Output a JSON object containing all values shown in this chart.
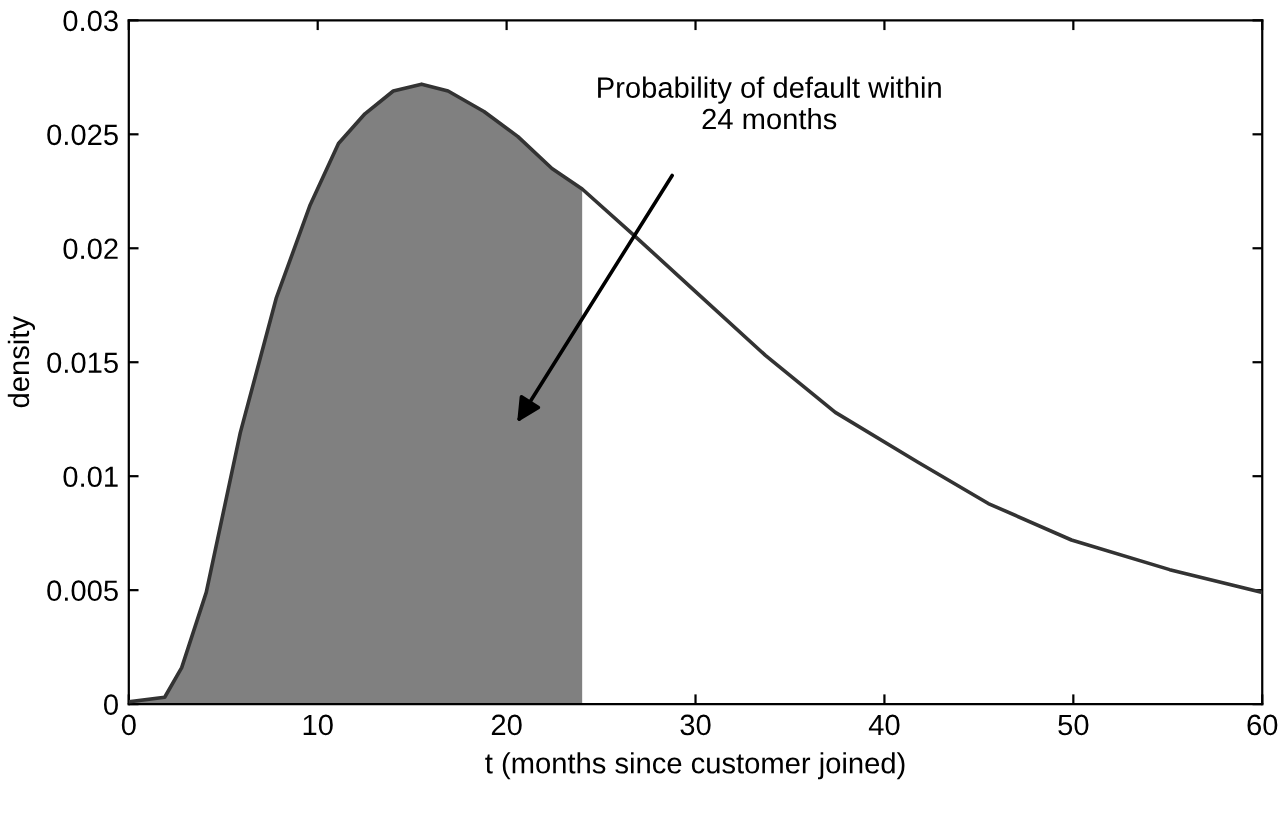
{
  "chart_data": {
    "type": "line",
    "xlabel": "t (months since customer joined)",
    "ylabel": "density",
    "series": [
      {
        "type": "area",
        "color": "#808080",
        "x": [
          0,
          1.9,
          2.8,
          4.1,
          5.9,
          7.8,
          9.6,
          11.1,
          12.5,
          14.0,
          15.5,
          16.9,
          18.8,
          20.6,
          22.4,
          24.0
        ],
        "values": [
          0.0001,
          0.0003,
          0.0016,
          0.0049,
          0.0119,
          0.0178,
          0.0219,
          0.0246,
          0.0259,
          0.0269,
          0.0272,
          0.0269,
          0.026,
          0.0249,
          0.0235,
          0.0226
        ]
      },
      {
        "color": "#333333",
        "x": [
          0,
          1.9,
          2.8,
          4.1,
          5.9,
          7.8,
          9.6,
          11.1,
          12.5,
          14.0,
          15.5,
          16.9,
          18.8,
          20.6,
          22.4,
          24.0,
          26.7,
          30,
          33.7,
          37.4,
          41.8,
          45.5,
          49.9,
          55.1,
          60
        ],
        "values": [
          0.0001,
          0.0003,
          0.0016,
          0.0049,
          0.0119,
          0.0178,
          0.0219,
          0.0246,
          0.0259,
          0.0269,
          0.0272,
          0.0269,
          0.026,
          0.0249,
          0.0235,
          0.0226,
          0.0206,
          0.0181,
          0.0153,
          0.0128,
          0.0106,
          0.0088,
          0.0072,
          0.0059,
          0.0049
        ]
      }
    ],
    "annotations": [
      "Probability of default within\n24 months"
    ],
    "xlim": [
      0,
      60
    ],
    "xticks": [
      0,
      10,
      20,
      30,
      40,
      50,
      60
    ],
    "ylim": [
      0,
      0.03
    ],
    "yticks": [
      0,
      0.005,
      0.01,
      0.015,
      0.02,
      0.025,
      0.03
    ],
    "grid": false,
    "legend": false
  }
}
